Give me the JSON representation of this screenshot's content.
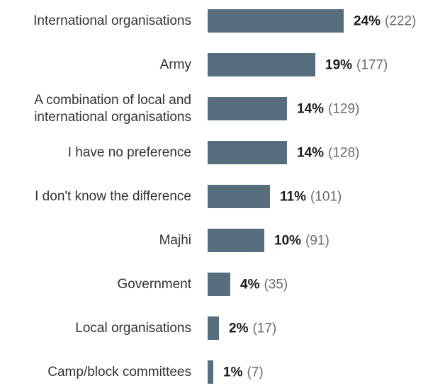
{
  "chart_data": {
    "type": "bar",
    "orientation": "horizontal",
    "bar_color": "#566e7e",
    "categories": [
      [
        "International organisations"
      ],
      [
        "Army"
      ],
      [
        "A combination of local and",
        "international organisations"
      ],
      [
        "I have no preference"
      ],
      [
        "I don't know the difference"
      ],
      [
        "Majhi"
      ],
      [
        "Government"
      ],
      [
        "Local organisations"
      ],
      [
        "Camp/block committees"
      ]
    ],
    "values": [
      24,
      19,
      14,
      14,
      11,
      10,
      4,
      2,
      1
    ],
    "value_labels": [
      "24%",
      "19%",
      "14%",
      "14%",
      "11%",
      "10%",
      "4%",
      "2%",
      "1%"
    ],
    "counts": [
      222,
      177,
      129,
      128,
      101,
      91,
      35,
      17,
      7
    ],
    "count_labels": [
      "(222)",
      "(177)",
      "(129)",
      "(128)",
      "(101)",
      "(91)",
      "(35)",
      "(17)",
      "(7)"
    ]
  }
}
